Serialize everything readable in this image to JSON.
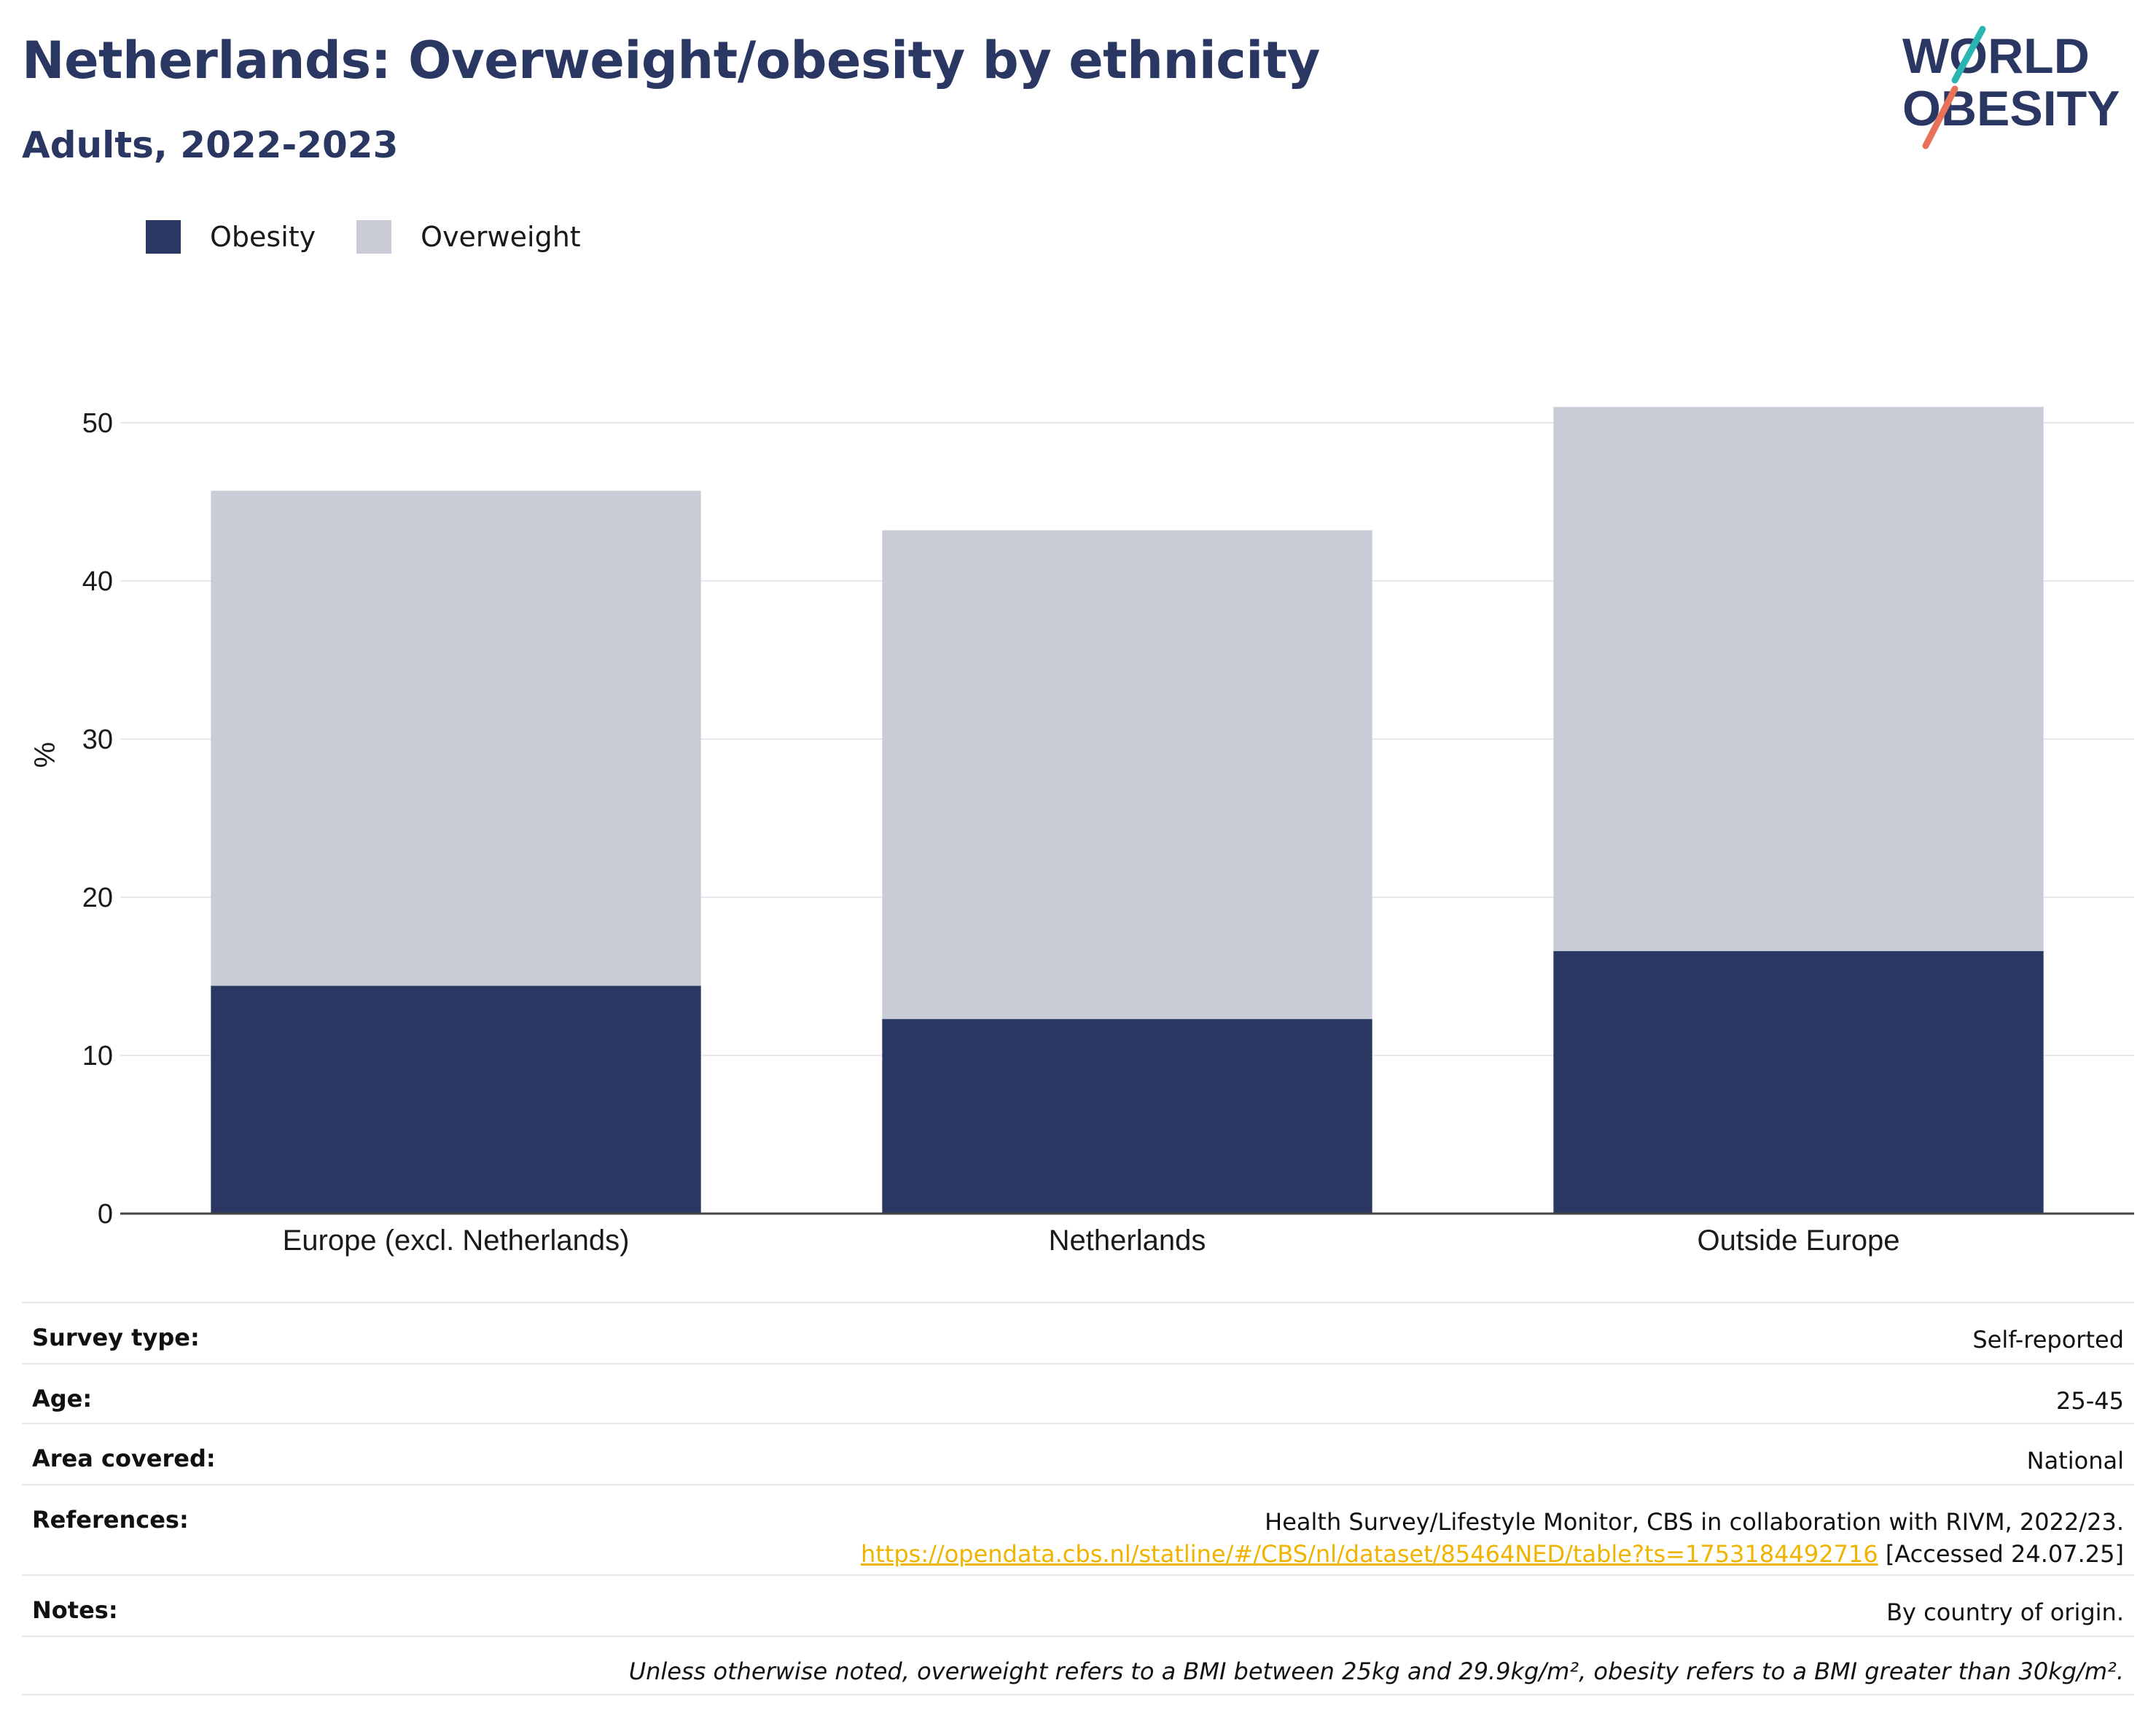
{
  "header": {
    "title": "Netherlands: Overweight/obesity by ethnicity",
    "subtitle": "Adults, 2022-2023"
  },
  "logo": {
    "line1": "WORLD",
    "line2": "OBESITY",
    "colors": {
      "text": "#2a3762",
      "slash_top": "#2bb5b0",
      "slash_bottom": "#e8715a"
    }
  },
  "legend": {
    "items": [
      {
        "label": "Obesity",
        "color": "#2a3762"
      },
      {
        "label": "Overweight",
        "color": "#c9cbd6"
      }
    ]
  },
  "chart_data": {
    "type": "bar",
    "stacked": true,
    "categories": [
      "Europe (excl. Netherlands)",
      "Netherlands",
      "Outside Europe"
    ],
    "series": [
      {
        "name": "Obesity",
        "color": "#2a3762",
        "values": [
          14.4,
          12.3,
          16.6
        ]
      },
      {
        "name": "Overweight",
        "color": "#c9cbd6",
        "values": [
          31.3,
          30.9,
          34.4
        ]
      }
    ],
    "ylabel": "%",
    "ylim": [
      0,
      55
    ],
    "yticks": [
      0,
      10,
      20,
      30,
      40,
      50
    ],
    "grid": true,
    "legend_position": "top-left"
  },
  "meta": {
    "rows": [
      {
        "key": "Survey type:",
        "value": "Self-reported"
      },
      {
        "key": "Age:",
        "value": "25-45"
      },
      {
        "key": "Area covered:",
        "value": "National"
      },
      {
        "key": "References:",
        "value": "Health Survey/Lifestyle Monitor, CBS in collaboration with RIVM, 2022/23.",
        "link": "https://opendata.cbs.nl/statline/#/CBS/nl/dataset/85464NED/table?ts=1753184492716",
        "link_suffix": " [Accessed 24.07.25]"
      },
      {
        "key": "Notes:",
        "value": "By country of origin."
      }
    ],
    "footnote": "Unless otherwise noted, overweight refers to a BMI between 25kg and 29.9kg/m², obesity refers to a BMI greater than 30kg/m²."
  }
}
